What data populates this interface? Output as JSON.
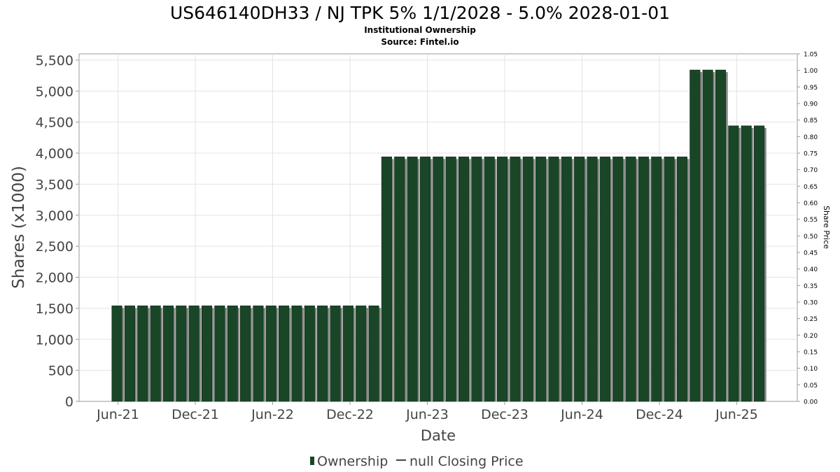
{
  "chart_data": {
    "type": "bar",
    "title": "US646140DH33 / NJ TPK 5% 1/1/2028 - 5.0% 2028-01-01",
    "subtitle": "Institutional Ownership",
    "source": "Source: Fintel.io",
    "xlabel": "Date",
    "ylabel": "Shares (x1000)",
    "y2label": "Share Price",
    "ylim": [
      0,
      5600
    ],
    "y2lim": [
      0,
      1.05
    ],
    "yticks": [
      "0",
      "500",
      "1,000",
      "1,500",
      "2,000",
      "2,500",
      "3,000",
      "3,500",
      "4,000",
      "4,500",
      "5,000",
      "5,500"
    ],
    "y2ticks": [
      "0.00",
      "0.05",
      "0.10",
      "0.15",
      "0.20",
      "0.25",
      "0.30",
      "0.35",
      "0.40",
      "0.45",
      "0.50",
      "0.55",
      "0.60",
      "0.65",
      "0.70",
      "0.75",
      "0.80",
      "0.85",
      "0.90",
      "0.95",
      "1.00",
      "1.05"
    ],
    "xticks": [
      "Jun-21",
      "Dec-21",
      "Jun-22",
      "Dec-22",
      "Jun-23",
      "Dec-23",
      "Jun-24",
      "Dec-24",
      "Jun-25"
    ],
    "grid": true,
    "legend_position": "bottom",
    "bar_color": "#1a4628",
    "series": [
      {
        "name": "Ownership",
        "values": [
          1540,
          1540,
          1540,
          1540,
          1540,
          1540,
          1540,
          1540,
          1540,
          1540,
          1540,
          1540,
          1540,
          1540,
          1540,
          1540,
          1540,
          1540,
          1540,
          1540,
          1540,
          3940,
          3940,
          3940,
          3940,
          3940,
          3940,
          3940,
          3940,
          3940,
          3940,
          3940,
          3940,
          3940,
          3940,
          3940,
          3940,
          3940,
          3940,
          3940,
          3940,
          3940,
          3940,
          3940,
          3940,
          5340,
          5340,
          5340,
          4440,
          4440,
          4440
        ]
      }
    ],
    "legend": [
      {
        "label": "Ownership",
        "marker": "bar"
      },
      {
        "label": "null Closing Price",
        "marker": "line"
      }
    ]
  }
}
